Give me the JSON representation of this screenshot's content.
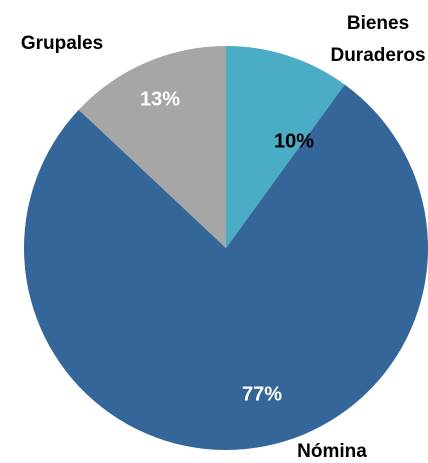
{
  "chart_data": {
    "type": "pie",
    "categories": [
      "Bienes Duraderos",
      "Nómina",
      "Grupales"
    ],
    "values": [
      10,
      77,
      13
    ],
    "value_labels": [
      "10%",
      "77%",
      "13%"
    ],
    "colors": [
      "#4bacc6",
      "#35669a",
      "#a6a6a6"
    ]
  }
}
